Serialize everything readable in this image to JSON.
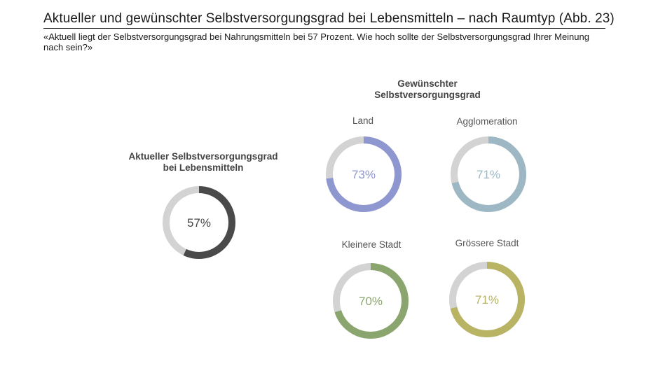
{
  "header": {
    "title": "Aktueller und gewünschter Selbstversorgungsgrad bei Lebensmitteln – nach Raumtyp  (Abb. 23)",
    "subtitle": "«Aktuell liegt der Selbstversorgungsgrad bei Nahrungsmitteln bei 57 Prozent. Wie hoch sollte der Selbstversorgungsgrad Ihrer Meinung nach sein?»"
  },
  "current": {
    "label_line1": "Aktueller Selbstversorgungsgrad",
    "label_line2": "bei Lebensmitteln"
  },
  "desired": {
    "label_line1": "Gewünschter",
    "label_line2": "Selbstversorgungsgrad"
  },
  "chart_data": {
    "type": "pie",
    "subtype": "donut",
    "charts": [
      {
        "name": "Aktueller Selbstversorgungsgrad bei Lebensmitteln",
        "value": 57,
        "label": "57%",
        "color": "#4a4a4a"
      },
      {
        "name": "Land",
        "value": 73,
        "label": "73%",
        "color": "#8e97cf"
      },
      {
        "name": "Agglomeration",
        "value": 71,
        "label": "71%",
        "color": "#9db8c4"
      },
      {
        "name": "Kleinere Stadt",
        "value": 70,
        "label": "70%",
        "color": "#8aa66e"
      },
      {
        "name": "Grössere Stadt",
        "value": 71,
        "label": "71%",
        "color": "#b8b463"
      }
    ],
    "remainder_color": "#d3d3d3"
  }
}
